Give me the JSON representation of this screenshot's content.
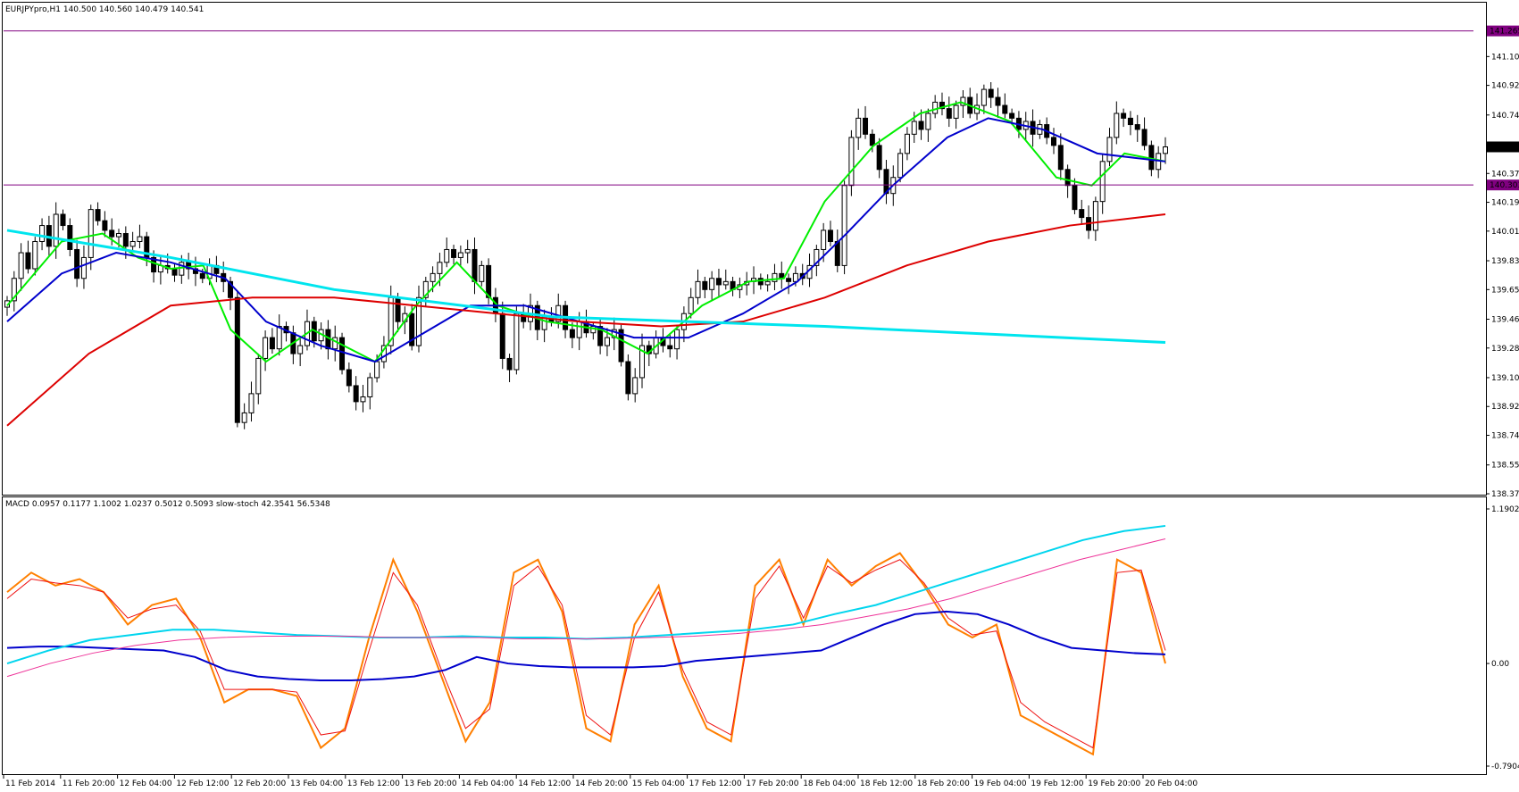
{
  "header": {
    "symbol_line": "EURJPYpro,H1  140.500 140.560 140.479 140.541"
  },
  "indicator_header": "MACD 0.0957 0.1177 1.1002 1.0237 0.5012 0.5093  slow-stoch 42.3541 56.5348",
  "chart_data": [
    {
      "type": "candlestick",
      "panel": "price",
      "symbol": "EURJPYpro",
      "timeframe": "H1",
      "ohlc_current": {
        "open": 140.5,
        "high": 140.56,
        "low": 140.479,
        "close": 140.541
      },
      "ylim": [
        138.375,
        141.38
      ],
      "y_ticks": [
        "141.105",
        "140.925",
        "140.740",
        "140.375",
        "140.195",
        "140.015",
        "139.830",
        "139.650",
        "139.465",
        "139.285",
        "139.100",
        "138.920",
        "138.740",
        "138.555",
        "138.375"
      ],
      "price_labels": [
        {
          "text": "141.265",
          "value": 141.265,
          "color": "#800080"
        },
        {
          "text": "140.541",
          "value": 140.541,
          "color": "#000000"
        },
        {
          "text": "140.303",
          "value": 140.303,
          "color": "#800080"
        }
      ],
      "x_ticks": [
        "11 Feb 2014",
        "11 Feb 20:00",
        "12 Feb 04:00",
        "12 Feb 12:00",
        "12 Feb 20:00",
        "13 Feb 04:00",
        "13 Feb 12:00",
        "13 Feb 20:00",
        "14 Feb 04:00",
        "14 Feb 12:00",
        "14 Feb 20:00",
        "15 Feb 04:00",
        "17 Feb 12:00",
        "17 Feb 20:00",
        "18 Feb 04:00",
        "18 Feb 12:00",
        "18 Feb 20:00",
        "19 Feb 04:00",
        "19 Feb 12:00",
        "19 Feb 20:00",
        "20 Feb 04:00"
      ],
      "closes": [
        139.58,
        139.72,
        139.88,
        139.78,
        139.95,
        140.05,
        139.92,
        140.12,
        140.05,
        139.9,
        139.72,
        139.85,
        140.15,
        140.08,
        140.02,
        139.98,
        140.0,
        139.92,
        139.95,
        139.98,
        139.85,
        139.76,
        139.8,
        139.78,
        139.74,
        139.82,
        139.78,
        139.75,
        139.72,
        139.8,
        139.75,
        139.7,
        139.6,
        138.82,
        138.88,
        139.0,
        139.22,
        139.35,
        139.28,
        139.42,
        139.38,
        139.25,
        139.3,
        139.45,
        139.33,
        139.4,
        139.28,
        139.35,
        139.15,
        139.05,
        138.95,
        138.98,
        139.1,
        139.2,
        139.3,
        139.6,
        139.45,
        139.5,
        139.3,
        139.6,
        139.7,
        139.75,
        139.82,
        139.9,
        139.85,
        139.88,
        139.9,
        139.7,
        139.8,
        139.6,
        139.5,
        139.22,
        139.15,
        139.5,
        139.45,
        139.55,
        139.4,
        139.48,
        139.45,
        139.55,
        139.4,
        139.35,
        139.45,
        139.38,
        139.42,
        139.3,
        139.35,
        139.4,
        139.2,
        139.0,
        139.1,
        139.3,
        139.25,
        139.35,
        139.3,
        139.28,
        139.4,
        139.5,
        139.6,
        139.7,
        139.65,
        139.72,
        139.68,
        139.7,
        139.65,
        139.68,
        139.7,
        139.72,
        139.68,
        139.7,
        139.75,
        139.72,
        139.7,
        139.75,
        139.72,
        139.8,
        139.9,
        140.02,
        139.95,
        139.8,
        140.3,
        140.6,
        140.72,
        140.62,
        140.55,
        140.4,
        140.25,
        140.35,
        140.5,
        140.62,
        140.7,
        140.65,
        140.75,
        140.82,
        140.78,
        140.72,
        140.8,
        140.85,
        140.75,
        140.8,
        140.9,
        140.85,
        140.8,
        140.75,
        140.72,
        140.65,
        140.7,
        140.62,
        140.68,
        140.6,
        140.55,
        140.4,
        140.3,
        140.15,
        140.1,
        140.02,
        140.2,
        140.45,
        140.6,
        140.75,
        140.72,
        140.68,
        140.65,
        140.55,
        140.4,
        140.5,
        140.541
      ],
      "lines": [
        {
          "color": "#00ee00",
          "points": [
            [
              0,
              139.55
            ],
            [
              20,
              139.95
            ],
            [
              35,
              140.0
            ],
            [
              48,
              139.85
            ],
            [
              60,
              139.78
            ],
            [
              72,
              139.8
            ],
            [
              82,
              139.4
            ],
            [
              95,
              139.2
            ],
            [
              112,
              139.4
            ],
            [
              135,
              139.2
            ],
            [
              150,
              139.55
            ],
            [
              165,
              139.82
            ],
            [
              180,
              139.55
            ],
            [
              198,
              139.45
            ],
            [
              218,
              139.4
            ],
            [
              235,
              139.25
            ],
            [
              255,
              139.55
            ],
            [
              272,
              139.7
            ],
            [
              285,
              139.72
            ],
            [
              300,
              140.2
            ],
            [
              318,
              140.55
            ],
            [
              335,
              140.75
            ],
            [
              350,
              140.82
            ],
            [
              368,
              140.7
            ],
            [
              385,
              140.35
            ],
            [
              398,
              140.3
            ],
            [
              410,
              140.5
            ],
            [
              425,
              140.45
            ]
          ]
        },
        {
          "color": "#0000cc",
          "points": [
            [
              0,
              139.45
            ],
            [
              20,
              139.75
            ],
            [
              40,
              139.88
            ],
            [
              60,
              139.82
            ],
            [
              80,
              139.72
            ],
            [
              95,
              139.45
            ],
            [
              115,
              139.3
            ],
            [
              135,
              139.2
            ],
            [
              150,
              139.35
            ],
            [
              170,
              139.55
            ],
            [
              190,
              139.55
            ],
            [
              210,
              139.45
            ],
            [
              230,
              139.35
            ],
            [
              250,
              139.35
            ],
            [
              270,
              139.5
            ],
            [
              290,
              139.7
            ],
            [
              308,
              140.0
            ],
            [
              325,
              140.3
            ],
            [
              345,
              140.6
            ],
            [
              360,
              140.72
            ],
            [
              380,
              140.65
            ],
            [
              400,
              140.5
            ],
            [
              425,
              140.45
            ]
          ]
        },
        {
          "color": "#dd0000",
          "points": [
            [
              0,
              138.8
            ],
            [
              30,
              139.25
            ],
            [
              60,
              139.55
            ],
            [
              90,
              139.6
            ],
            [
              120,
              139.6
            ],
            [
              150,
              139.55
            ],
            [
              180,
              139.5
            ],
            [
              210,
              139.45
            ],
            [
              240,
              139.42
            ],
            [
              270,
              139.45
            ],
            [
              300,
              139.6
            ],
            [
              330,
              139.8
            ],
            [
              360,
              139.95
            ],
            [
              390,
              140.05
            ],
            [
              425,
              140.12
            ]
          ]
        },
        {
          "color": "#00e5ee",
          "points": [
            [
              0,
              140.02
            ],
            [
              60,
              139.85
            ],
            [
              120,
              139.65
            ],
            [
              200,
              139.48
            ],
            [
              300,
              139.42
            ],
            [
              425,
              139.32
            ]
          ]
        }
      ]
    },
    {
      "type": "line",
      "panel": "indicator",
      "name": "MACD + slow-stoch",
      "values_header": "MACD 0.0957 0.1177 1.1002 1.0237 0.5012 0.5093  slow-stoch 42.3541 56.5348",
      "y_ticks": [
        "1.1902",
        "0.00",
        "-0.7904"
      ],
      "ylim": [
        -0.7904,
        1.1902
      ],
      "series": [
        {
          "color": "#ff7f00",
          "values": [
            0.55,
            0.7,
            0.6,
            0.65,
            0.55,
            0.3,
            0.45,
            0.5,
            0.2,
            -0.3,
            -0.2,
            -0.2,
            -0.25,
            -0.65,
            -0.5,
            0.2,
            0.8,
            0.4,
            -0.1,
            -0.6,
            -0.3,
            0.7,
            0.8,
            0.4,
            -0.5,
            -0.6,
            0.3,
            0.6,
            -0.1,
            -0.5,
            -0.6,
            0.6,
            0.8,
            0.3,
            0.8,
            0.6,
            0.75,
            0.85,
            0.6,
            0.3,
            0.2,
            0.3,
            -0.4,
            -0.5,
            -0.6,
            -0.7,
            0.8,
            0.7,
            0.0
          ]
        },
        {
          "color": "#ee1111",
          "values": [
            0.5,
            0.65,
            0.62,
            0.6,
            0.55,
            0.35,
            0.42,
            0.45,
            0.25,
            -0.2,
            -0.2,
            -0.2,
            -0.22,
            -0.55,
            -0.52,
            0.1,
            0.7,
            0.45,
            -0.05,
            -0.5,
            -0.35,
            0.6,
            0.75,
            0.45,
            -0.4,
            -0.55,
            0.2,
            0.55,
            -0.05,
            -0.45,
            -0.55,
            0.5,
            0.75,
            0.35,
            0.75,
            0.62,
            0.72,
            0.8,
            0.62,
            0.35,
            0.22,
            0.25,
            -0.3,
            -0.45,
            -0.55,
            -0.65,
            0.7,
            0.72,
            0.1
          ]
        },
        {
          "color": "#0000cc",
          "values": [
            0.12,
            0.13,
            0.13,
            0.12,
            0.11,
            0.1,
            0.05,
            -0.05,
            -0.1,
            -0.12,
            -0.13,
            -0.13,
            -0.12,
            -0.1,
            -0.05,
            0.05,
            0.0,
            -0.02,
            -0.03,
            -0.03,
            -0.03,
            -0.02,
            0.02,
            0.04,
            0.06,
            0.08,
            0.1,
            0.2,
            0.3,
            0.38,
            0.4,
            0.38,
            0.3,
            0.2,
            0.12,
            0.1,
            0.08,
            0.07
          ]
        },
        {
          "color": "#00d5ee",
          "values": [
            0.0,
            0.1,
            0.18,
            0.22,
            0.26,
            0.26,
            0.24,
            0.22,
            0.21,
            0.2,
            0.2,
            0.21,
            0.2,
            0.2,
            0.19,
            0.2,
            0.22,
            0.24,
            0.26,
            0.3,
            0.38,
            0.45,
            0.55,
            0.65,
            0.75,
            0.85,
            0.95,
            1.02,
            1.06
          ]
        },
        {
          "color": "#ee3399",
          "values": [
            -0.1,
            0.0,
            0.08,
            0.14,
            0.18,
            0.2,
            0.21,
            0.21,
            0.21,
            0.2,
            0.2,
            0.2,
            0.19,
            0.19,
            0.19,
            0.2,
            0.21,
            0.23,
            0.26,
            0.3,
            0.36,
            0.42,
            0.5,
            0.6,
            0.7,
            0.8,
            0.88,
            0.96
          ]
        }
      ]
    }
  ]
}
